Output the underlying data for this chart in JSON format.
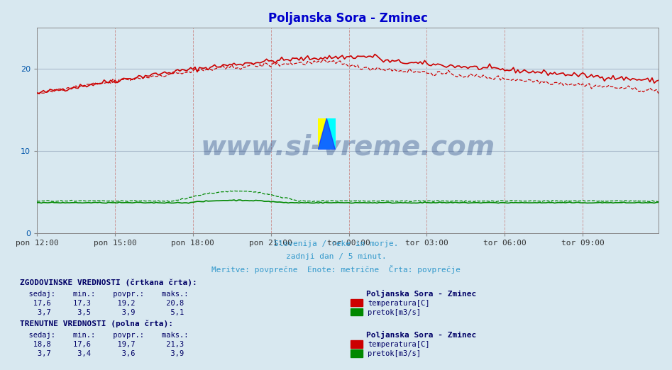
{
  "title": "Poljanska Sora - Zminec",
  "title_color": "#0000cc",
  "bg_color": "#d8e8f0",
  "plot_bg_color": "#d8e8f0",
  "x_tick_labels": [
    "pon 12:00",
    "pon 15:00",
    "pon 18:00",
    "pon 21:00",
    "tor 00:00",
    "tor 03:00",
    "tor 06:00",
    "tor 09:00"
  ],
  "x_tick_positions": [
    0,
    36,
    72,
    108,
    144,
    180,
    216,
    252
  ],
  "n_points": 288,
  "ylim": [
    0,
    25
  ],
  "yticks": [
    0,
    10,
    20
  ],
  "ylabel_color": "#0055aa",
  "grid_color_v": "#cc9999",
  "grid_color_h": "#aabbcc",
  "temp_solid_color": "#cc0000",
  "temp_dash_color": "#cc0000",
  "flow_solid_color": "#008800",
  "flow_dash_color": "#008800",
  "watermark_text": "www.si-vreme.com",
  "watermark_color": "#1a3a7a",
  "watermark_alpha": 0.35,
  "subtitle1": "Slovenija / reke in morje.",
  "subtitle2": "zadnji dan / 5 minut.",
  "subtitle3": "Meritve: povprečne  Enote: metrične  Črta: povprečje",
  "subtitle_color": "#3399cc",
  "text_color": "#000088",
  "stat_header1": "ZGODOVINSKE VREDNOSTI (črtkana črta):",
  "stat_cols": "  sedaj:    min.:    povpr.:    maks.:",
  "stat_location": "Poljanska Sora - Zminec",
  "stat_hist_temp": "   17,6     17,3      19,2       20,8",
  "stat_hist_flow": "    3,7      3,5       3,9        5,1",
  "stat_header2": "TRENUTNE VREDNOSTI (polna črta):",
  "stat_curr_temp": "   18,8     17,6      19,7       21,3",
  "stat_curr_flow": "    3,7      3,4       3,6        3,9",
  "legend_temp": "temperatura[C]",
  "legend_flow": "pretok[m3/s]"
}
